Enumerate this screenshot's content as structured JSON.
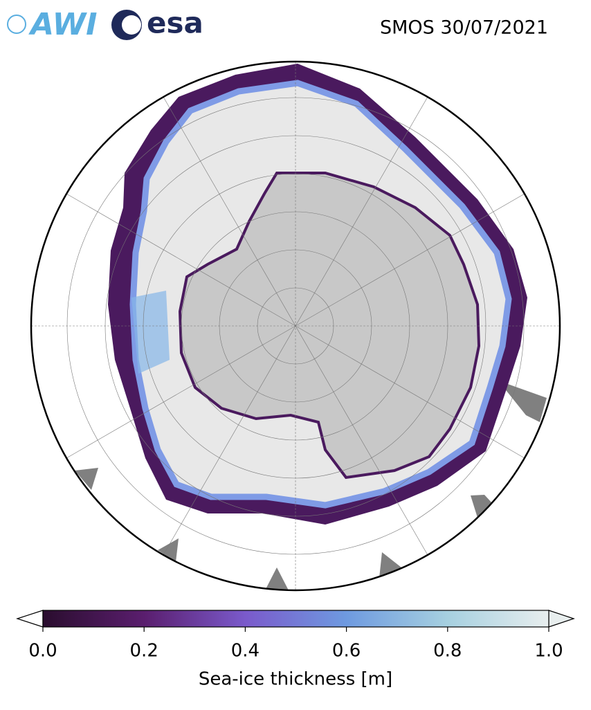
{
  "header": {
    "logos": [
      "AWI",
      "esa"
    ],
    "title": "SMOS 30/07/2021"
  },
  "colorbar": {
    "label": "Sea-ice thickness [m]",
    "lim": [
      0,
      1
    ],
    "ticks": [
      {
        "value": 0,
        "label": "0.0"
      },
      0.2,
      0.4,
      0.6,
      0.8,
      {
        "value": 1,
        "label": "1.0"
      }
    ],
    "colors": [
      "#2a0d2e",
      "#5a1e6e",
      "#7a5acb",
      "#6e9ae0",
      "#a6d0e0",
      "#e8eeee"
    ]
  }
}
